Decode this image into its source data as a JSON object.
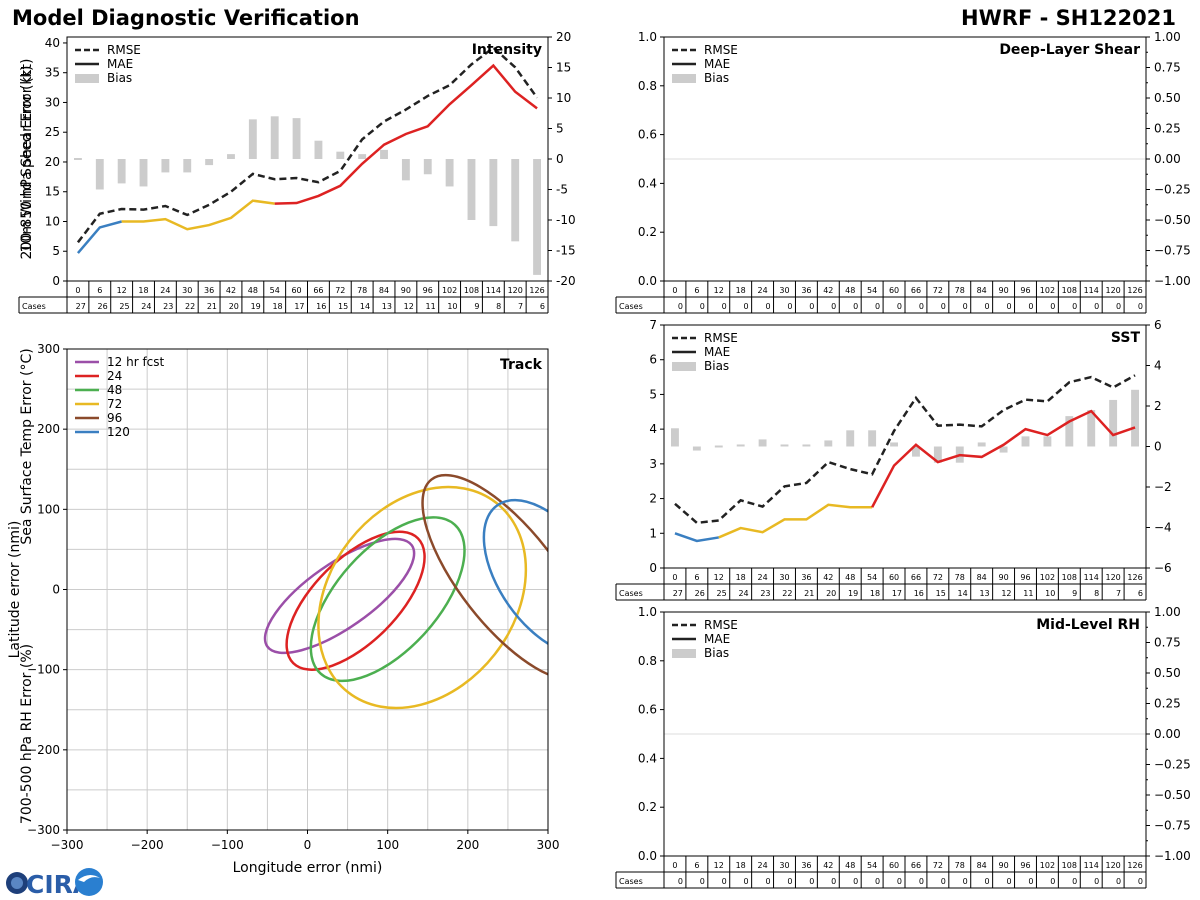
{
  "header": {
    "title_left": "Model Diagnostic Verification",
    "title_right": "HWRF - SH122021",
    "logo_text": "CIRA"
  },
  "colors": {
    "rmse": "#222222",
    "blue": "#3a7fc1",
    "yellow": "#e8b923",
    "red": "#dd2222",
    "bias": "#cccccc",
    "grid": "#cccccc"
  },
  "chart_data": [
    {
      "id": "intensity",
      "type": "line",
      "title": "Intensity",
      "ylabel": "10m Wind Speed Error (kt)",
      "ylim": [
        0,
        41
      ],
      "yticks": [
        0,
        5,
        10,
        15,
        20,
        25,
        30,
        35,
        40
      ],
      "y2lim": [
        -20,
        20
      ],
      "y2ticks": [
        -20,
        -15,
        -10,
        -5,
        0,
        5,
        10,
        15,
        20
      ],
      "legend": [
        "RMSE",
        "MAE",
        "Bias"
      ],
      "x": [
        0,
        6,
        12,
        18,
        24,
        30,
        36,
        42,
        48,
        54,
        60,
        66,
        72,
        78,
        84,
        90,
        96,
        102,
        108,
        114,
        120,
        126
      ],
      "cases": [
        27,
        26,
        25,
        24,
        23,
        22,
        21,
        20,
        19,
        18,
        17,
        16,
        15,
        14,
        13,
        12,
        11,
        10,
        9,
        8,
        7,
        6
      ],
      "rmse": [
        6.5,
        11.3,
        12.1,
        12.0,
        12.6,
        11.1,
        12.8,
        15.0,
        18.0,
        17.1,
        17.3,
        16.6,
        18.5,
        23.8,
        26.8,
        28.8,
        31.1,
        32.9,
        36.4,
        39.2,
        35.9,
        30.8
      ],
      "mae": [
        4.7,
        9.0,
        10.0,
        10.0,
        10.4,
        8.7,
        9.4,
        10.6,
        13.5,
        13.0,
        13.1,
        14.3,
        16.0,
        19.7,
        22.9,
        24.7,
        26.0,
        29.7,
        32.9,
        36.2,
        31.8,
        29.0
      ],
      "bias": [
        0,
        -5,
        -4,
        -4.5,
        -2.2,
        -2.2,
        -1,
        0.8,
        6.5,
        7,
        6.7,
        3,
        1.2,
        0.8,
        1.5,
        -3.5,
        -2.5,
        -4.5,
        -10,
        -11,
        -13.5,
        -19
      ],
      "mae_segments": [
        [
          0,
          2,
          "blue"
        ],
        [
          2,
          9,
          "yellow"
        ],
        [
          9,
          21,
          "red"
        ]
      ]
    },
    {
      "id": "shear",
      "type": "line",
      "title": "Deep-Layer Shear",
      "ylabel": "200-850 hPa Shear Error (kt)",
      "ylim": [
        0,
        1
      ],
      "yticks": [
        "0.0",
        "0.2",
        "0.4",
        "0.6",
        "0.8",
        "1.0"
      ],
      "y2lim": [
        -1,
        1
      ],
      "y2ticks": [
        "−1.00",
        "−0.75",
        "−0.50",
        "−0.25",
        "0.00",
        "0.25",
        "0.50",
        "0.75",
        "1.00"
      ],
      "legend": [
        "RMSE",
        "MAE",
        "Bias"
      ],
      "x": [
        0,
        6,
        12,
        18,
        24,
        30,
        36,
        42,
        48,
        54,
        60,
        66,
        72,
        78,
        84,
        90,
        96,
        102,
        108,
        114,
        120,
        126
      ],
      "cases": [
        0,
        0,
        0,
        0,
        0,
        0,
        0,
        0,
        0,
        0,
        0,
        0,
        0,
        0,
        0,
        0,
        0,
        0,
        0,
        0,
        0,
        0
      ]
    },
    {
      "id": "sst",
      "type": "line",
      "title": "SST",
      "ylabel": "Sea Surface Temp Error (°C)",
      "ylim": [
        0,
        7
      ],
      "yticks": [
        0,
        1,
        2,
        3,
        4,
        5,
        6,
        7
      ],
      "y2lim": [
        -6,
        6
      ],
      "y2ticks": [
        "−6",
        "−4",
        "−2",
        "0",
        "2",
        "4",
        "6"
      ],
      "legend": [
        "RMSE",
        "MAE",
        "Bias"
      ],
      "x": [
        0,
        6,
        12,
        18,
        24,
        30,
        36,
        42,
        48,
        54,
        60,
        66,
        72,
        78,
        84,
        90,
        96,
        102,
        108,
        114,
        120,
        126
      ],
      "cases": [
        27,
        26,
        25,
        24,
        23,
        22,
        21,
        20,
        19,
        18,
        17,
        16,
        15,
        14,
        13,
        12,
        11,
        10,
        9,
        8,
        7,
        6
      ],
      "rmse": [
        1.85,
        1.3,
        1.37,
        1.95,
        1.77,
        2.35,
        2.45,
        3.05,
        2.85,
        2.7,
        3.95,
        4.9,
        4.1,
        4.13,
        4.08,
        4.55,
        4.85,
        4.8,
        5.35,
        5.5,
        5.2,
        5.55
      ],
      "mae": [
        1.0,
        0.78,
        0.88,
        1.15,
        1.03,
        1.4,
        1.4,
        1.82,
        1.75,
        1.75,
        2.95,
        3.55,
        3.05,
        3.25,
        3.2,
        3.55,
        4.0,
        3.83,
        4.22,
        4.52,
        3.83,
        4.05
      ],
      "bias": [
        0.9,
        -0.2,
        0,
        0.1,
        0.35,
        0.1,
        0.1,
        0.3,
        0.8,
        0.8,
        0.2,
        -0.5,
        -0.8,
        -0.8,
        0.2,
        -0.3,
        0.5,
        0.5,
        1.5,
        1.8,
        2.3,
        2.8
      ],
      "mae_segments": [
        [
          0,
          2,
          "blue"
        ],
        [
          2,
          9,
          "yellow"
        ],
        [
          9,
          21,
          "red"
        ]
      ]
    },
    {
      "id": "rh",
      "type": "line",
      "title": "Mid-Level RH",
      "ylabel": "700-500 hPa RH Error (%)",
      "ylim": [
        0,
        1
      ],
      "yticks": [
        "0.0",
        "0.2",
        "0.4",
        "0.6",
        "0.8",
        "1.0"
      ],
      "y2lim": [
        -1,
        1
      ],
      "y2ticks": [
        "−1.00",
        "−0.75",
        "−0.50",
        "−0.25",
        "0.00",
        "0.25",
        "0.50",
        "0.75",
        "1.00"
      ],
      "legend": [
        "RMSE",
        "MAE",
        "Bias"
      ],
      "x": [
        0,
        6,
        12,
        18,
        24,
        30,
        36,
        42,
        48,
        54,
        60,
        66,
        72,
        78,
        84,
        90,
        96,
        102,
        108,
        114,
        120,
        126
      ],
      "cases": [
        0,
        0,
        0,
        0,
        0,
        0,
        0,
        0,
        0,
        0,
        0,
        0,
        0,
        0,
        0,
        0,
        0,
        0,
        0,
        0,
        0,
        0
      ]
    },
    {
      "id": "track",
      "type": "scatter",
      "title": "Track",
      "xlabel": "Longitude error (nmi)",
      "ylabel": "Latitude error (nmi)",
      "xlim": [
        -300,
        300
      ],
      "ylim": [
        -300,
        300
      ],
      "xticks": [
        "−300",
        "−200",
        "−100",
        "0",
        "100",
        "200",
        "300"
      ],
      "yticks": [
        "−300",
        "−200",
        "−100",
        "0",
        "100",
        "200",
        "300"
      ],
      "ellipses": [
        {
          "name": "12 hr fcst",
          "color": "#9b4fa8",
          "cx": 40,
          "cy": -8,
          "a": 110,
          "b": 40,
          "angle": -35
        },
        {
          "name": "24",
          "color": "#dd2222",
          "cx": 60,
          "cy": -14,
          "a": 110,
          "b": 52,
          "angle": -45
        },
        {
          "name": "48",
          "color": "#4caf50",
          "cx": 100,
          "cy": -12,
          "a": 125,
          "b": 63,
          "angle": -48
        },
        {
          "name": "72",
          "color": "#e8b923",
          "cx": 143,
          "cy": -10,
          "a": 150,
          "b": 115,
          "angle": -52
        },
        {
          "name": "96",
          "color": "#8b4a2b",
          "cx": 250,
          "cy": 15,
          "a": 155,
          "b": 60,
          "angle": 52
        },
        {
          "name": "120",
          "color": "#3a7fc1",
          "cx": 300,
          "cy": 15,
          "a": 110,
          "b": 60,
          "angle": 55
        }
      ]
    }
  ]
}
